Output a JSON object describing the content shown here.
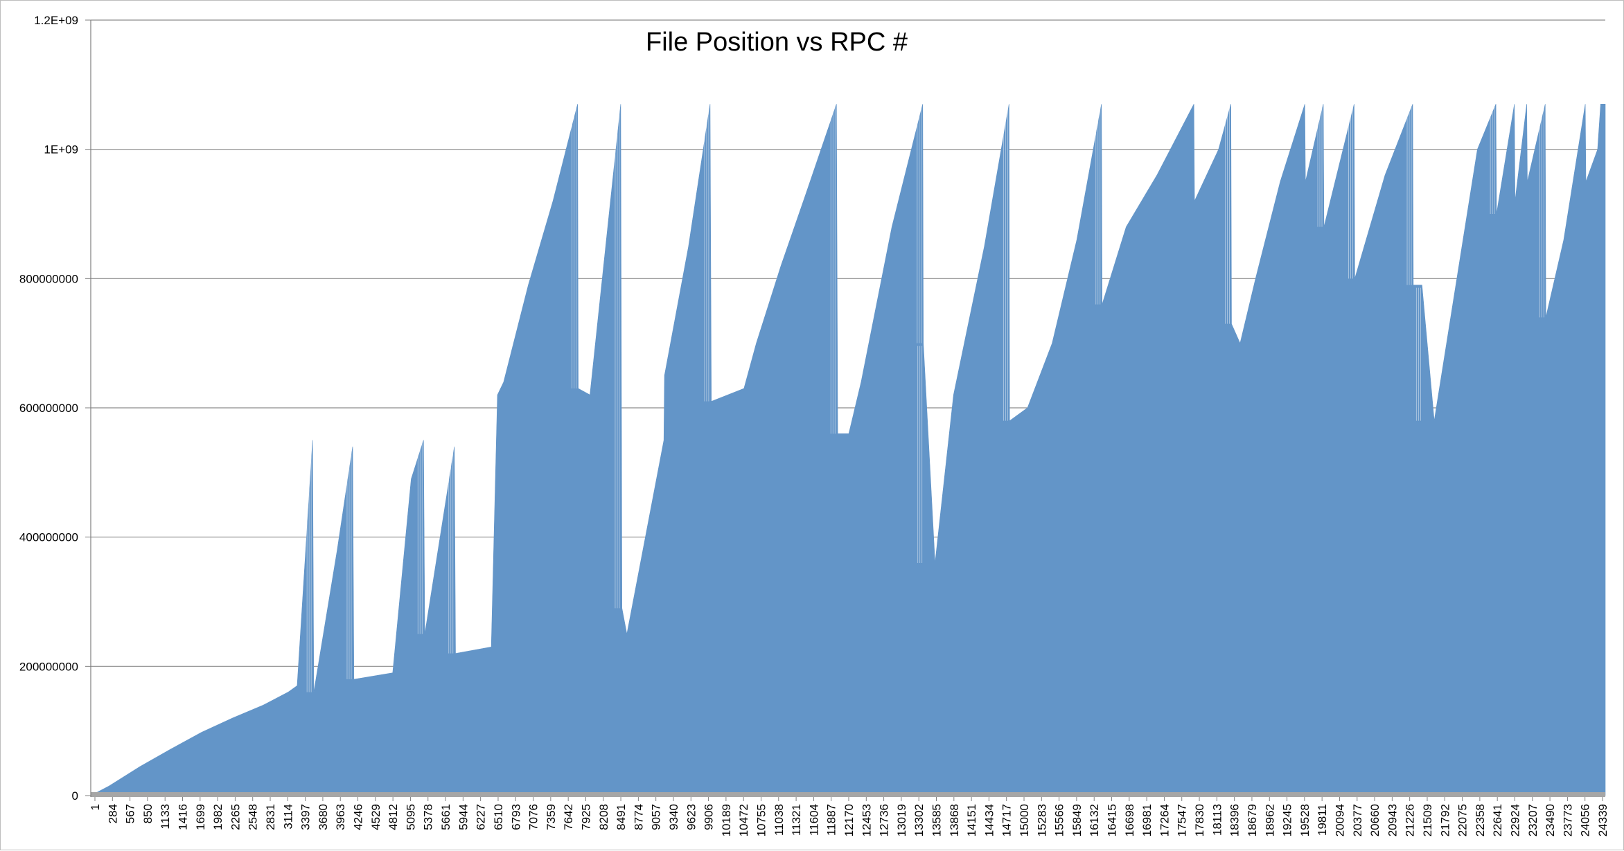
{
  "chart_data": {
    "type": "bar",
    "title": "File Position vs RPC #",
    "xlabel": "",
    "ylabel": "",
    "ylim": [
      0,
      1200000000
    ],
    "grid": true,
    "legend": "none",
    "bar_color": "#6395c8",
    "grid_color": "#8c8c8c",
    "baseline_color": "#a6a6a6",
    "y_ticks": [
      {
        "value": 0,
        "label": "0"
      },
      {
        "value": 200000000,
        "label": "200000000"
      },
      {
        "value": 400000000,
        "label": "400000000"
      },
      {
        "value": 600000000,
        "label": "600000000"
      },
      {
        "value": 800000000,
        "label": "800000000"
      },
      {
        "value": 1000000000,
        "label": "1E+09"
      },
      {
        "value": 1200000000,
        "label": "1.2E+09"
      }
    ],
    "x_ticks": [
      "1",
      "284",
      "567",
      "850",
      "1133",
      "1416",
      "1699",
      "1982",
      "2265",
      "2548",
      "2831",
      "3114",
      "3397",
      "3680",
      "3963",
      "4246",
      "4529",
      "4812",
      "5095",
      "5378",
      "5661",
      "5944",
      "6227",
      "6510",
      "6793",
      "7076",
      "7359",
      "7642",
      "7925",
      "8208",
      "8491",
      "8774",
      "9057",
      "9340",
      "9623",
      "9906",
      "10189",
      "10472",
      "10755",
      "11038",
      "11321",
      "11604",
      "11887",
      "12170",
      "12453",
      "12736",
      "13019",
      "13302",
      "13585",
      "13868",
      "14151",
      "14434",
      "14717",
      "15000",
      "15283",
      "15566",
      "15849",
      "16132",
      "16415",
      "16698",
      "16981",
      "17264",
      "17547",
      "17830",
      "18113",
      "18396",
      "18679",
      "18962",
      "19245",
      "19528",
      "19811",
      "20094",
      "20377",
      "20660",
      "20943",
      "21226",
      "21509",
      "21792",
      "22075",
      "22358",
      "22641",
      "22924",
      "23207",
      "23490",
      "23773",
      "24056",
      "24339"
    ],
    "x_range": [
      1,
      24575
    ],
    "series": [
      {
        "upper_envelope": [
          [
            1,
            0
          ],
          [
            300,
            15000000
          ],
          [
            800,
            45000000
          ],
          [
            1300,
            72000000
          ],
          [
            1800,
            98000000
          ],
          [
            2300,
            120000000
          ],
          [
            2800,
            140000000
          ],
          [
            3200,
            160000000
          ],
          [
            3350,
            170000000
          ],
          [
            3600,
            550000000
          ],
          [
            3620,
            160000000
          ],
          [
            4000,
            380000000
          ],
          [
            4250,
            540000000
          ],
          [
            4270,
            180000000
          ],
          [
            4900,
            190000000
          ],
          [
            5200,
            490000000
          ],
          [
            5400,
            550000000
          ],
          [
            5420,
            250000000
          ],
          [
            5900,
            540000000
          ],
          [
            5920,
            220000000
          ],
          [
            6500,
            230000000
          ],
          [
            6600,
            620000000
          ],
          [
            6700,
            640000000
          ],
          [
            7100,
            790000000
          ],
          [
            7500,
            920000000
          ],
          [
            7900,
            1070000000
          ],
          [
            7910,
            630000000
          ],
          [
            8100,
            620000000
          ],
          [
            8600,
            1070000000
          ],
          [
            8620,
            290000000
          ],
          [
            8700,
            250000000
          ],
          [
            9000,
            400000000
          ],
          [
            9300,
            550000000
          ],
          [
            9310,
            650000000
          ],
          [
            9700,
            850000000
          ],
          [
            10050,
            1070000000
          ],
          [
            10070,
            610000000
          ],
          [
            10600,
            630000000
          ],
          [
            10800,
            700000000
          ],
          [
            11200,
            820000000
          ],
          [
            11600,
            930000000
          ],
          [
            12100,
            1070000000
          ],
          [
            12120,
            560000000
          ],
          [
            12300,
            560000000
          ],
          [
            12500,
            640000000
          ],
          [
            13000,
            880000000
          ],
          [
            13500,
            1070000000
          ],
          [
            13510,
            700000000
          ],
          [
            13700,
            360000000
          ],
          [
            14000,
            620000000
          ],
          [
            14500,
            850000000
          ],
          [
            14900,
            1070000000
          ],
          [
            14910,
            580000000
          ],
          [
            15200,
            600000000
          ],
          [
            15600,
            700000000
          ],
          [
            16000,
            860000000
          ],
          [
            16400,
            1070000000
          ],
          [
            16410,
            760000000
          ],
          [
            16800,
            880000000
          ],
          [
            17300,
            960000000
          ],
          [
            17900,
            1070000000
          ],
          [
            17910,
            920000000
          ],
          [
            18300,
            1000000000
          ],
          [
            18500,
            1070000000
          ],
          [
            18510,
            730000000
          ],
          [
            18650,
            700000000
          ],
          [
            18900,
            800000000
          ],
          [
            19300,
            950000000
          ],
          [
            19700,
            1070000000
          ],
          [
            19710,
            950000000
          ],
          [
            20000,
            1070000000
          ],
          [
            20010,
            880000000
          ],
          [
            20500,
            1070000000
          ],
          [
            20510,
            800000000
          ],
          [
            21000,
            960000000
          ],
          [
            21450,
            1070000000
          ],
          [
            21460,
            790000000
          ],
          [
            21600,
            790000000
          ],
          [
            21800,
            580000000
          ],
          [
            22100,
            760000000
          ],
          [
            22500,
            1000000000
          ],
          [
            22800,
            1070000000
          ],
          [
            22810,
            900000000
          ],
          [
            23100,
            1070000000
          ],
          [
            23110,
            920000000
          ],
          [
            23300,
            1070000000
          ],
          [
            23310,
            950000000
          ],
          [
            23600,
            1070000000
          ],
          [
            23610,
            740000000
          ],
          [
            23900,
            860000000
          ],
          [
            24250,
            1070000000
          ],
          [
            24260,
            950000000
          ],
          [
            24450,
            1000000000
          ],
          [
            24500,
            1070000000
          ],
          [
            24575,
            1070000000
          ]
        ]
      }
    ]
  }
}
